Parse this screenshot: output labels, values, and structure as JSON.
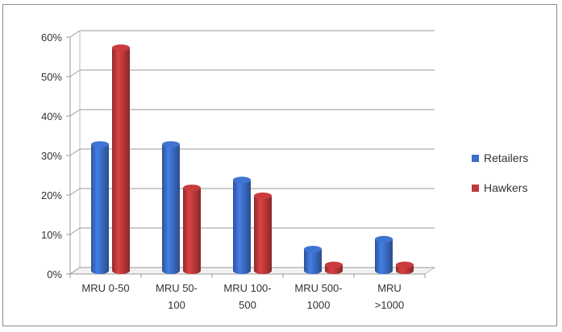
{
  "chart_data": {
    "type": "bar",
    "title": "",
    "xlabel": "",
    "ylabel": "",
    "categories": [
      [
        "MRU 0-50"
      ],
      [
        "MRU 50-",
        "100"
      ],
      [
        "MRU 100-",
        "500"
      ],
      [
        "MRU 500-",
        "1000"
      ],
      [
        "MRU",
        ">1000"
      ]
    ],
    "series": [
      {
        "name": "Retailers",
        "color": "#3c6ec8",
        "values": [
          0.32,
          0.32,
          0.23,
          0.055,
          0.08
        ]
      },
      {
        "name": "Hawkers",
        "color": "#c0393b",
        "values": [
          0.565,
          0.21,
          0.19,
          0.015,
          0.015
        ]
      }
    ],
    "ylim": [
      0,
      0.6
    ],
    "yticks": [
      "0%",
      "10%",
      "20%",
      "30%",
      "40%",
      "50%",
      "60%"
    ],
    "grid": true,
    "legend": "right"
  }
}
